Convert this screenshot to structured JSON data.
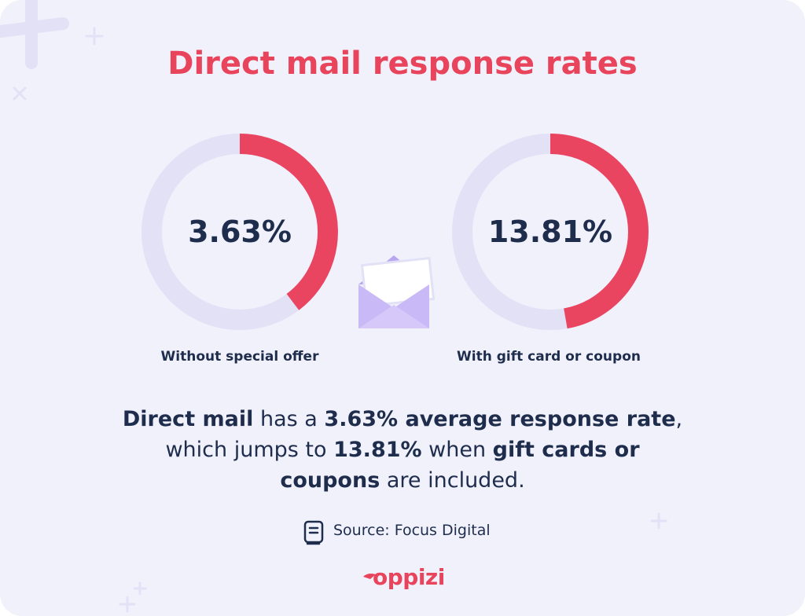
{
  "title": "Direct mail response rates",
  "stats": [
    {
      "value": "3.63%",
      "label": "Without special offer"
    },
    {
      "value": "13.81%",
      "label": "With gift card or coupon"
    }
  ],
  "summary": [
    "Direct mail",
    " has a ",
    "3.63% average response rate",
    ",",
    "which jumps to ",
    "13.81%",
    " when ",
    "gift cards or",
    "coupons",
    " are included."
  ],
  "source": "Source: Focus Digital",
  "logo": "oppizi"
}
